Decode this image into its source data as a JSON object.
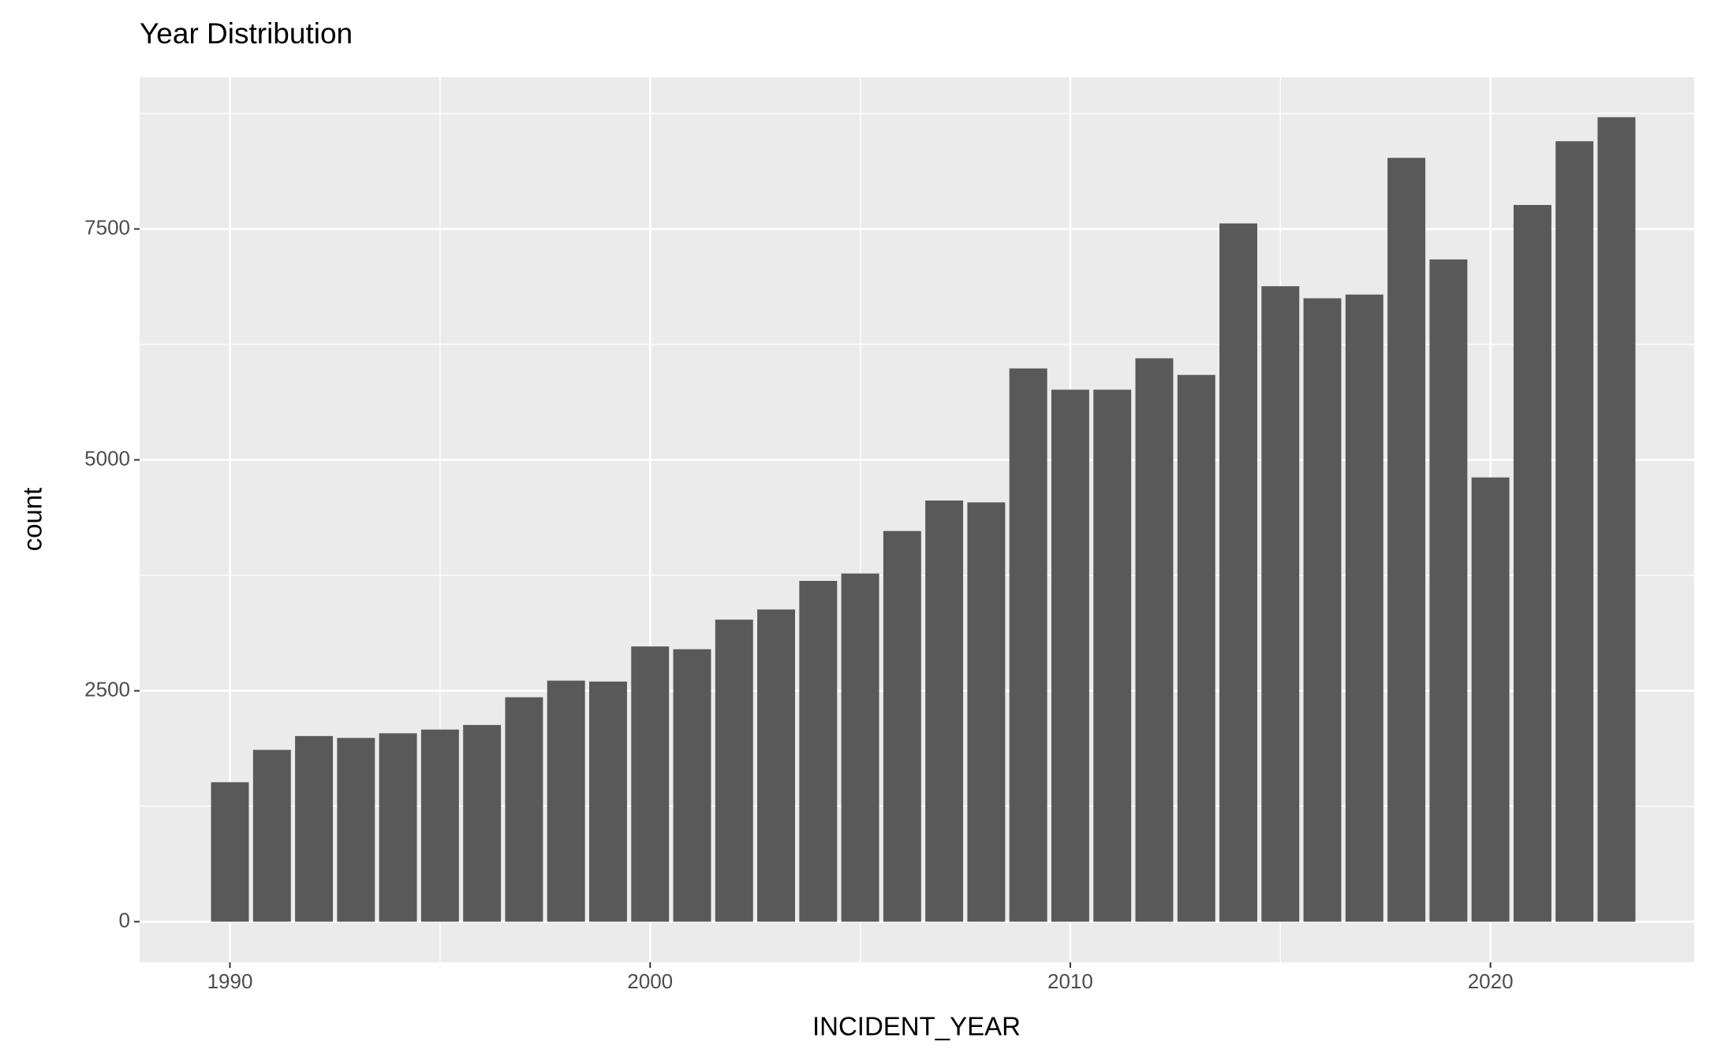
{
  "chart_data": {
    "type": "bar",
    "title": "Year Distribution",
    "x_label": "INCIDENT_YEAR",
    "y_label": "count",
    "x": [
      1990,
      1991,
      1992,
      1993,
      1994,
      1995,
      1996,
      1997,
      1998,
      1999,
      2000,
      2001,
      2002,
      2003,
      2004,
      2005,
      2006,
      2007,
      2008,
      2009,
      2010,
      2011,
      2012,
      2013,
      2014,
      2015,
      2016,
      2017,
      2018,
      2019,
      2020,
      2021,
      2022,
      2023
    ],
    "values": [
      1510,
      1860,
      2010,
      1990,
      2040,
      2080,
      2130,
      2430,
      2610,
      2600,
      2980,
      2950,
      3270,
      3380,
      3690,
      3770,
      4230,
      4560,
      4540,
      5990,
      5760,
      5760,
      6100,
      5920,
      7560,
      6880,
      6750,
      6790,
      8270,
      7170,
      4810,
      7760,
      8450,
      8710
    ],
    "color": "#595959",
    "xlim": [
      1987.85,
      2024.85
    ],
    "xticks": [
      1990,
      2000,
      2010,
      2020
    ],
    "ylim": [
      -440,
      9143
    ],
    "yticks": [
      0,
      2500,
      5000,
      7500
    ],
    "grid": true
  }
}
